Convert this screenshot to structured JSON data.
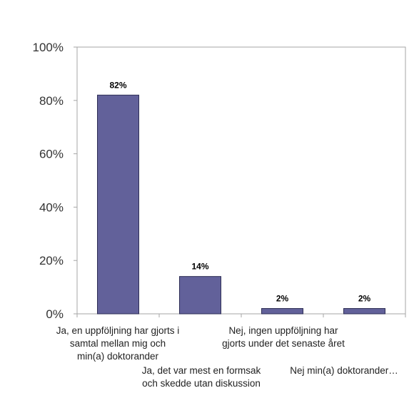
{
  "chart_data": {
    "type": "bar",
    "categories": [
      "Ja, en uppföljning har gjorts i samtal mellan mig och min(a) doktorander",
      "Ja, det var mest en formsak och skedde utan diskussion",
      "Nej, ingen uppföljning har gjorts under det senaste året",
      "Nej min(a) doktorander…"
    ],
    "values": [
      82,
      14,
      2,
      2
    ],
    "data_labels": [
      "82%",
      "14%",
      "2%",
      "2%"
    ],
    "y_ticks": [
      "0%",
      "20%",
      "40%",
      "60%",
      "80%",
      "100%"
    ],
    "ylim": [
      0,
      100
    ],
    "grid": false,
    "legend": "none",
    "colors": {
      "bar_fill": "#62619a",
      "bar_stroke": "#2e2e55",
      "axis": "#a6a6a6",
      "background": "#ffffff"
    }
  }
}
